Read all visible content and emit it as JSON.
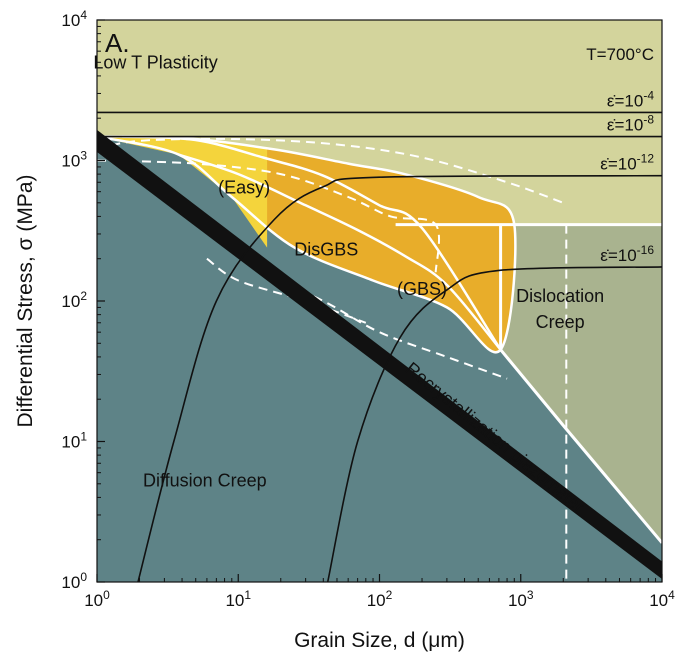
{
  "chart_data": {
    "type": "area",
    "panel_label": "A.",
    "temperature_label": "T=700°C",
    "xlabel": "Grain Size, d (μm)",
    "ylabel": "Differential Stress, σ (MPa)",
    "xscale": "log",
    "yscale": "log",
    "xlim": [
      1,
      10000
    ],
    "ylim": [
      1,
      10000
    ],
    "x_ticks": [
      {
        "base": "10",
        "exp": "0"
      },
      {
        "base": "10",
        "exp": "1"
      },
      {
        "base": "10",
        "exp": "2"
      },
      {
        "base": "10",
        "exp": "3"
      },
      {
        "base": "10",
        "exp": "4"
      }
    ],
    "y_ticks": [
      {
        "base": "10",
        "exp": "0"
      },
      {
        "base": "10",
        "exp": "1"
      },
      {
        "base": "10",
        "exp": "2"
      },
      {
        "base": "10",
        "exp": "3"
      },
      {
        "base": "10",
        "exp": "4"
      }
    ],
    "regions": [
      {
        "name": "Low T Plasticity",
        "color": "#d3d49c",
        "label_at": [
          2.6,
          4500
        ]
      },
      {
        "name": "Diffusion Creep",
        "color": "#5e8387",
        "label_at": [
          5.8,
          4.8
        ]
      },
      {
        "name": "Dislocation Creep",
        "color": "#a9b38f",
        "label_at": [
          1900,
          95
        ]
      },
      {
        "name": "DisGBS",
        "color": "#e8ad2a",
        "label_at": [
          42,
          210
        ]
      },
      {
        "name": "(Easy)",
        "color": "#f4d43c",
        "label_at": [
          11,
          580
        ]
      },
      {
        "name": "(GBS)",
        "color": "#e8ad2a",
        "label_at": [
          200,
          110
        ]
      }
    ],
    "strain_rate_labels": [
      {
        "base": "ε̇=10",
        "exp": "-4",
        "y": 2200
      },
      {
        "base": "ε̇=10",
        "exp": "-8",
        "y": 1480
      },
      {
        "base": "ε̇=10",
        "exp": "-12",
        "y": 780
      },
      {
        "base": "ε̇=10",
        "exp": "-16",
        "y": 175
      }
    ],
    "piezometer": {
      "label": "Recrystallization piezometer",
      "upper": [
        [
          1,
          1650
        ],
        [
          10000,
          1.4
        ]
      ],
      "lower": [
        [
          1,
          1150
        ],
        [
          10000,
          1.05
        ]
      ]
    },
    "series": [
      {
        "name": "ε̇=10-4",
        "points": [
          [
            1,
            2200
          ],
          [
            10000,
            2200
          ]
        ]
      },
      {
        "name": "ε̇=10-8",
        "points": [
          [
            1,
            1480
          ],
          [
            1.5,
            1480
          ],
          [
            10000,
            1480
          ]
        ]
      },
      {
        "name": "ε̇=10-12",
        "points": [
          [
            1.95,
            1
          ],
          [
            3.5,
            10
          ],
          [
            7,
            100
          ],
          [
            18,
            380
          ],
          [
            40,
            650
          ],
          [
            100,
            760
          ],
          [
            10000,
            780
          ]
        ]
      },
      {
        "name": "ε̇=10-16",
        "points": [
          [
            43,
            1
          ],
          [
            70,
            10
          ],
          [
            140,
            55
          ],
          [
            300,
            120
          ],
          [
            700,
            165
          ],
          [
            10000,
            175
          ]
        ]
      }
    ],
    "boundaries": {
      "disgbs_outline": [
        [
          1,
          1480
        ],
        [
          4,
          1450
        ],
        [
          18,
          1200
        ],
        [
          60,
          950
        ],
        [
          150,
          800
        ],
        [
          500,
          550
        ],
        [
          900,
          350
        ],
        [
          720,
          45
        ],
        [
          300,
          90
        ],
        [
          90,
          140
        ],
        [
          25,
          240
        ],
        [
          9,
          550
        ],
        [
          3.8,
          1100
        ],
        [
          1,
          1480
        ]
      ],
      "dislocation_region": [
        [
          720,
          350
        ],
        [
          10000,
          350
        ],
        [
          10000,
          1.9
        ],
        [
          720,
          45
        ]
      ],
      "diffusion_dislocation_solid": [
        [
          720,
          45
        ],
        [
          2000,
          13
        ],
        [
          10000,
          1.9
        ]
      ],
      "disgbs_top_solid": [
        [
          130,
          350
        ],
        [
          10000,
          350
        ]
      ],
      "disgbs_divider_solid": [
        [
          720,
          350
        ],
        [
          720,
          45
        ]
      ],
      "easy_inner_1": [
        [
          1.5,
          1480
        ],
        [
          5,
          1400
        ],
        [
          15,
          1050
        ],
        [
          40,
          780
        ],
        [
          100,
          480
        ],
        [
          200,
          330
        ],
        [
          720,
          45
        ]
      ],
      "easy_inner_2": [
        [
          3.8,
          1100
        ],
        [
          10,
          800
        ],
        [
          30,
          480
        ],
        [
          70,
          320
        ],
        [
          150,
          210
        ],
        [
          300,
          130
        ],
        [
          720,
          45
        ]
      ],
      "dashed_1": [
        [
          1,
          1200
        ],
        [
          2,
          1380
        ],
        [
          10,
          1420
        ],
        [
          50,
          1300
        ],
        [
          200,
          1050
        ],
        [
          800,
          700
        ],
        [
          2000,
          500
        ]
      ],
      "dashed_2": [
        [
          1,
          1000
        ],
        [
          5,
          950
        ],
        [
          20,
          800
        ],
        [
          60,
          550
        ],
        [
          120,
          400
        ],
        [
          250,
          350
        ],
        [
          250,
          160
        ]
      ],
      "dashed_3": [
        [
          14,
          160
        ],
        [
          40,
          100
        ],
        [
          100,
          60
        ],
        [
          300,
          40
        ],
        [
          800,
          28
        ]
      ],
      "dashed_4": [
        [
          6,
          200
        ],
        [
          10,
          140
        ],
        [
          30,
          100
        ],
        [
          80,
          70
        ]
      ],
      "dashed_5": [
        [
          2100,
          350
        ],
        [
          2100,
          1
        ]
      ]
    }
  }
}
